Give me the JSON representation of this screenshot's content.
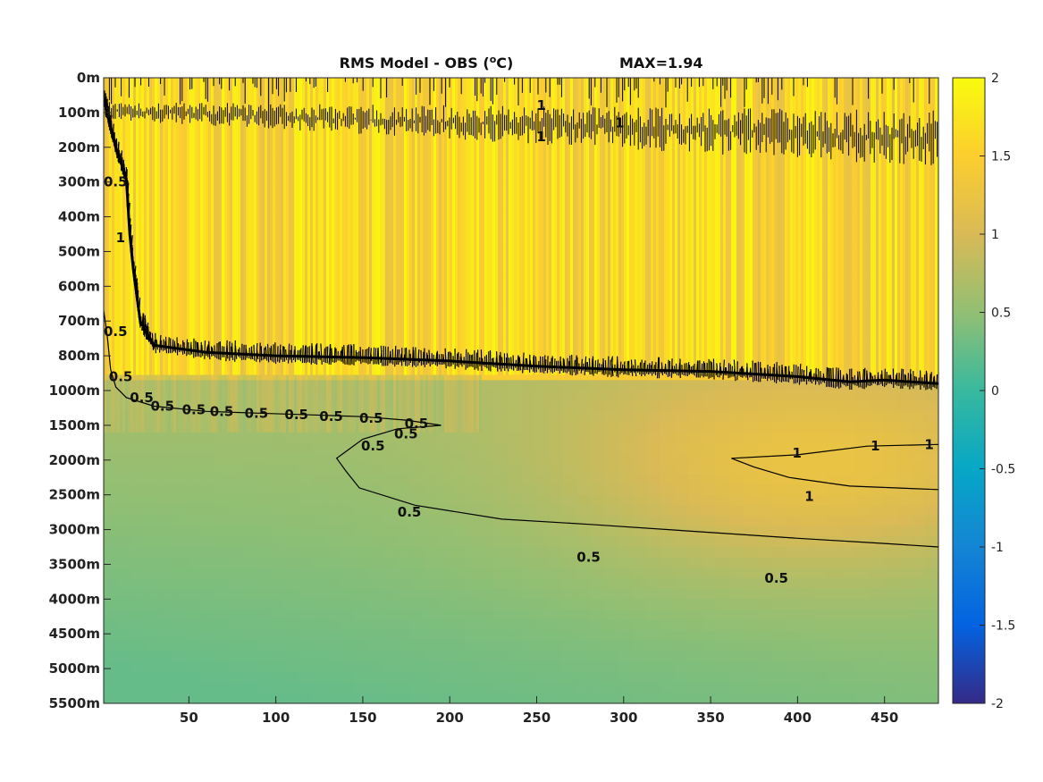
{
  "chart_data": {
    "type": "heatmap",
    "title": "RMS Model - OBS (",
    "title_unit": "o",
    "title_unit_suffix": "C)",
    "max_label": "MAX=1.94",
    "xlabel": "",
    "ylabel": "",
    "x_ticks": [
      "50",
      "100",
      "150",
      "200",
      "250",
      "300",
      "350",
      "400",
      "450"
    ],
    "x_tick_values": [
      50,
      100,
      150,
      200,
      250,
      300,
      350,
      400,
      450
    ],
    "xlim": [
      1,
      481
    ],
    "y_ticks": [
      "0m",
      "100m",
      "200m",
      "300m",
      "400m",
      "500m",
      "600m",
      "700m",
      "800m",
      "1000m",
      "1500m",
      "2000m",
      "2500m",
      "3000m",
      "3500m",
      "4000m",
      "4500m",
      "5000m",
      "5500m"
    ],
    "colorbar": {
      "min": -2,
      "max": 2,
      "ticks": [
        "2",
        "1.5",
        "1",
        "0.5",
        "0",
        "-0.5",
        "-1",
        "-1.5",
        "-2"
      ],
      "tick_values": [
        2,
        1.5,
        1,
        0.5,
        0,
        -0.5,
        -1,
        -1.5,
        -2
      ],
      "colormap": "parula"
    },
    "contour_levels": [
      0.5,
      1
    ],
    "contour_labels": [
      "0.5",
      "1"
    ],
    "contour_lines": [
      {
        "level": 1,
        "points": [
          [
            1,
            0.6
          ],
          [
            8,
            2.0
          ],
          [
            14,
            2.9
          ],
          [
            16,
            4.5
          ],
          [
            18,
            5.5
          ],
          [
            22,
            7.0
          ],
          [
            30,
            7.7
          ],
          [
            60,
            7.9
          ],
          [
            100,
            8.0
          ],
          [
            150,
            8.05
          ],
          [
            200,
            8.15
          ],
          [
            250,
            8.3
          ],
          [
            300,
            8.4
          ],
          [
            350,
            8.45
          ],
          [
            400,
            8.6
          ],
          [
            430,
            8.75
          ],
          [
            450,
            8.7
          ],
          [
            481,
            8.8
          ]
        ]
      },
      {
        "level": 0.5,
        "points": [
          [
            1,
            6.7
          ],
          [
            3,
            7.4
          ],
          [
            5,
            8.4
          ],
          [
            8,
            8.9
          ],
          [
            14,
            9.2
          ],
          [
            30,
            9.45
          ],
          [
            60,
            9.6
          ],
          [
            90,
            9.65
          ],
          [
            120,
            9.7
          ],
          [
            150,
            9.75
          ],
          [
            175,
            9.85
          ],
          [
            195,
            10.0
          ],
          [
            170,
            10.1
          ],
          [
            150,
            10.4
          ],
          [
            135,
            10.95
          ],
          [
            140,
            11.3
          ],
          [
            148,
            11.8
          ],
          [
            180,
            12.3
          ],
          [
            230,
            12.7
          ],
          [
            280,
            12.85
          ],
          [
            340,
            13.05
          ],
          [
            400,
            13.25
          ],
          [
            450,
            13.4
          ],
          [
            481,
            13.5
          ]
        ]
      },
      {
        "level": 1,
        "points": [
          [
            481,
            10.55
          ],
          [
            440,
            10.6
          ],
          [
            400,
            10.85
          ],
          [
            362,
            10.95
          ],
          [
            375,
            11.2
          ],
          [
            395,
            11.5
          ],
          [
            430,
            11.75
          ],
          [
            481,
            11.85
          ]
        ]
      }
    ],
    "contour_label_positions": [
      {
        "text": "0.5",
        "x": 1,
        "y": 3.0
      },
      {
        "text": "0.5",
        "x": 1,
        "y": 7.3
      },
      {
        "text": "0.5",
        "x": 4,
        "y": 8.6
      },
      {
        "text": "0.5",
        "x": 16,
        "y": 9.2
      },
      {
        "text": "0.5",
        "x": 28,
        "y": 9.45
      },
      {
        "text": "0.5",
        "x": 46,
        "y": 9.55
      },
      {
        "text": "0.5",
        "x": 62,
        "y": 9.6
      },
      {
        "text": "0.5",
        "x": 82,
        "y": 9.65
      },
      {
        "text": "0.5",
        "x": 105,
        "y": 9.7
      },
      {
        "text": "0.5",
        "x": 125,
        "y": 9.75
      },
      {
        "text": "0.5",
        "x": 148,
        "y": 9.8
      },
      {
        "text": "0.5",
        "x": 174,
        "y": 9.95
      },
      {
        "text": "0.5",
        "x": 168,
        "y": 10.25
      },
      {
        "text": "0.5",
        "x": 149,
        "y": 10.6
      },
      {
        "text": "0.5",
        "x": 170,
        "y": 12.5
      },
      {
        "text": "0.5",
        "x": 273,
        "y": 13.8
      },
      {
        "text": "0.5",
        "x": 381,
        "y": 14.4
      },
      {
        "text": "1",
        "x": 1,
        "y": 1.0
      },
      {
        "text": "1",
        "x": 8,
        "y": 4.6
      },
      {
        "text": "1",
        "x": 397,
        "y": 10.8
      },
      {
        "text": "1",
        "x": 442,
        "y": 10.6
      },
      {
        "text": "1",
        "x": 473,
        "y": 10.55
      },
      {
        "text": "1",
        "x": 404,
        "y": 12.05
      },
      {
        "text": "1",
        "x": 250,
        "y": 0.8
      },
      {
        "text": "1",
        "x": 250,
        "y": 1.7
      },
      {
        "text": "1",
        "x": 295,
        "y": 1.3
      }
    ],
    "field_description_values": {
      "upper_mean": 1.45,
      "lower_left_min": 0.25,
      "lower_right_max": 1.15
    }
  }
}
